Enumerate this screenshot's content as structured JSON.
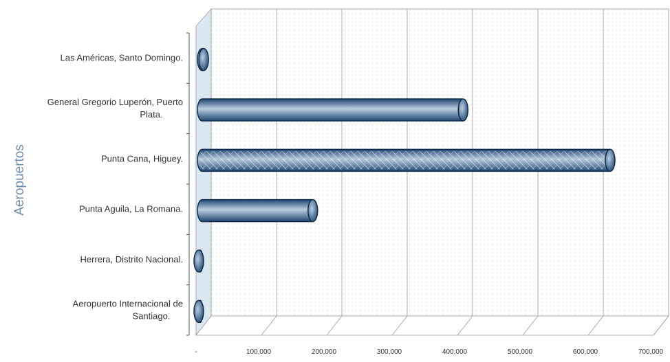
{
  "chart_data": {
    "type": "bar",
    "orientation": "horizontal",
    "ylabel": "Aeropuertos",
    "xlabel": "",
    "categories": [
      [
        "Las Américas, Santo Domingo."
      ],
      [
        "General Gregorio Luperón, Puerto",
        "Plata."
      ],
      [
        "Punta Cana, Higuey."
      ],
      [
        "Punta Aguila, La Romana."
      ],
      [
        "Herrera, Distrito Nacional."
      ],
      [
        "Aeropuerto Internacional de",
        "Santiago."
      ]
    ],
    "values": [
      18000,
      415000,
      640000,
      185000,
      9000,
      9000
    ],
    "xlim": [
      0,
      700000
    ],
    "xticks": [
      "-",
      "100,000",
      "200,000",
      "300,000",
      "400,000",
      "500,000",
      "600,000",
      "700,000"
    ],
    "grid": true,
    "legend": "none",
    "colors": {
      "bar_dark": "#1f4670",
      "bar_light": "#b9cde0",
      "bar_outline": "#0f2c4c",
      "highlight_hatch": "#8fa9c4",
      "axis_label": "#6d8fb0",
      "wall": "#dbe7f1",
      "grid": "#9c9c9c"
    }
  }
}
